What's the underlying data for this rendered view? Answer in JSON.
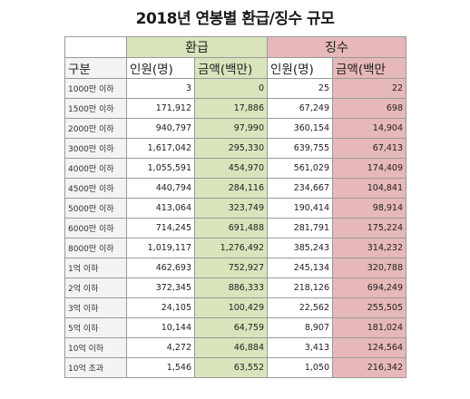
{
  "title": "2018년 연봉별 환급/징수 규모",
  "group_headers": {
    "refund": "환급",
    "collection": "징수"
  },
  "column_headers": {
    "category": "구분",
    "refund_people": "인원(명)",
    "refund_amount": "금액(백만)",
    "collection_people": "인원(명)",
    "collection_amount": "금액(백만"
  },
  "colors": {
    "refund_fill": "#d8e4bc",
    "collection_fill": "#e6b8b7",
    "label_fill": "#f3f3f3",
    "border": "#9a9a9a"
  },
  "rows": [
    {
      "label": "1000만 이하",
      "refund_people": "3",
      "refund_amount": "0",
      "collection_people": "25",
      "collection_amount": "22"
    },
    {
      "label": "1500만 이하",
      "refund_people": "171,912",
      "refund_amount": "17,886",
      "collection_people": "67,249",
      "collection_amount": "698"
    },
    {
      "label": "2000만 이하",
      "refund_people": "940,797",
      "refund_amount": "97,990",
      "collection_people": "360,154",
      "collection_amount": "14,904"
    },
    {
      "label": "3000만 이하",
      "refund_people": "1,617,042",
      "refund_amount": "295,330",
      "collection_people": "639,755",
      "collection_amount": "67,413"
    },
    {
      "label": "4000만 이하",
      "refund_people": "1,055,591",
      "refund_amount": "454,970",
      "collection_people": "561,029",
      "collection_amount": "174,409"
    },
    {
      "label": "4500만 이하",
      "refund_people": "440,794",
      "refund_amount": "284,116",
      "collection_people": "234,667",
      "collection_amount": "104,841"
    },
    {
      "label": "5000만 이하",
      "refund_people": "413,064",
      "refund_amount": "323,749",
      "collection_people": "190,414",
      "collection_amount": "98,914"
    },
    {
      "label": "6000만 이하",
      "refund_people": "714,245",
      "refund_amount": "691,488",
      "collection_people": "281,791",
      "collection_amount": "175,224"
    },
    {
      "label": "8000만 이하",
      "refund_people": "1,019,117",
      "refund_amount": "1,276,492",
      "collection_people": "385,243",
      "collection_amount": "314,232"
    },
    {
      "label": "1억 이하",
      "refund_people": "462,693",
      "refund_amount": "752,927",
      "collection_people": "245,134",
      "collection_amount": "320,788"
    },
    {
      "label": "2억 이하",
      "refund_people": "372,345",
      "refund_amount": "886,333",
      "collection_people": "218,126",
      "collection_amount": "694,249"
    },
    {
      "label": "3억 이하",
      "refund_people": "24,105",
      "refund_amount": "100,429",
      "collection_people": "22,562",
      "collection_amount": "255,505"
    },
    {
      "label": "5억 이하",
      "refund_people": "10,144",
      "refund_amount": "64,759",
      "collection_people": "8,907",
      "collection_amount": "181,024"
    },
    {
      "label": "10억 이하",
      "refund_people": "4,272",
      "refund_amount": "46,884",
      "collection_people": "3,413",
      "collection_amount": "124,564"
    },
    {
      "label": "10억 초과",
      "refund_people": "1,546",
      "refund_amount": "63,552",
      "collection_people": "1,050",
      "collection_amount": "216,342"
    }
  ]
}
